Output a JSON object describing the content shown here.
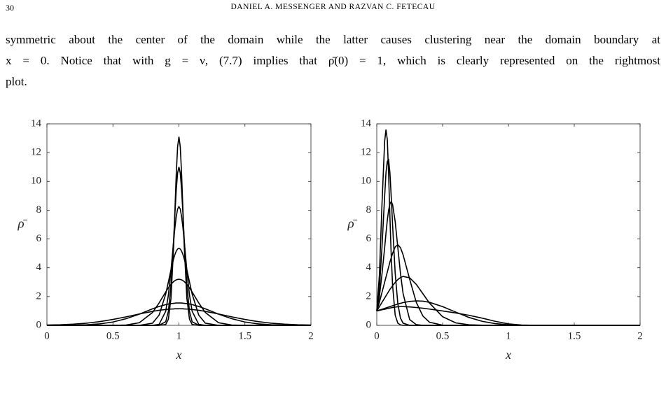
{
  "header": {
    "page_number": "30",
    "running_title": "DANIEL A. MESSENGER AND RAZVAN C. FETECAU"
  },
  "paragraph": {
    "lines": [
      "symmetric about the center of the domain while the latter causes clustering near the domain boundary at",
      "x = 0. Notice that with g = ν, (7.7) implies that ρ̄(0) = 1, which is clearly represented on the rightmost",
      "plot."
    ]
  },
  "chart_data": [
    {
      "type": "line",
      "xlabel": "x",
      "ylabel": "ρ̄",
      "x": [
        0,
        0.1,
        0.2,
        0.3,
        0.4,
        0.5,
        0.6,
        0.7,
        0.8,
        0.85,
        0.9,
        0.92,
        0.94,
        0.96,
        0.97,
        0.98,
        0.99,
        1,
        1.01,
        1.02,
        1.03,
        1.04,
        1.06,
        1.08,
        1.1,
        1.15,
        1.2,
        1.3,
        1.4,
        1.5,
        1.6,
        1.7,
        1.8,
        1.9,
        2
      ],
      "series": [
        {
          "color": "#000000",
          "values": [
            0,
            0,
            0,
            0,
            0,
            0,
            0,
            0,
            0,
            0,
            0.06,
            0.42,
            1.89,
            5.54,
            8.07,
            10.57,
            12.41,
            13.1,
            12.41,
            10.57,
            8.07,
            5.54,
            1.89,
            0.42,
            0.06,
            0,
            0,
            0,
            0,
            0,
            0,
            0,
            0,
            0,
            0
          ]
        },
        {
          "color": "#000000",
          "values": [
            0,
            0,
            0,
            0,
            0,
            0,
            0,
            0,
            0,
            0,
            0.25,
            0.97,
            2.81,
            5.99,
            7.82,
            9.45,
            10.59,
            11,
            10.59,
            9.45,
            7.82,
            5.99,
            2.81,
            0.97,
            0.25,
            0,
            0,
            0,
            0,
            0,
            0,
            0,
            0,
            0,
            0
          ]
        },
        {
          "color": "#000000",
          "values": [
            0,
            0,
            0,
            0,
            0,
            0,
            0,
            0,
            0,
            0.07,
            0.98,
            2.1,
            3.83,
            5.86,
            6.81,
            7.58,
            8.08,
            8.25,
            8.08,
            7.58,
            6.81,
            5.86,
            3.83,
            2.1,
            0.98,
            0.07,
            0,
            0,
            0,
            0,
            0,
            0,
            0,
            0,
            0
          ]
        },
        {
          "color": "#000000",
          "values": [
            0,
            0,
            0,
            0,
            0,
            0,
            0,
            0,
            0.15,
            0.71,
            2.18,
            3.01,
            3.87,
            4.63,
            4.93,
            5.16,
            5.3,
            5.35,
            5.3,
            5.16,
            4.93,
            4.63,
            3.87,
            3.01,
            2.18,
            0.71,
            0.15,
            0,
            0,
            0,
            0,
            0,
            0,
            0,
            0
          ]
        },
        {
          "color": "#000000",
          "values": [
            0,
            0,
            0,
            0,
            0,
            0,
            0.02,
            0.18,
            0.89,
            1.56,
            2.32,
            2.61,
            2.85,
            3.04,
            3.11,
            3.16,
            3.19,
            3.2,
            3.19,
            3.16,
            3.11,
            3.04,
            2.85,
            2.61,
            2.32,
            1.56,
            0.89,
            0.18,
            0.02,
            0,
            0,
            0,
            0,
            0,
            0
          ]
        },
        {
          "color": "#000000",
          "values": [
            0,
            0,
            0.01,
            0.04,
            0.1,
            0.23,
            0.46,
            0.78,
            1.15,
            1.31,
            1.44,
            1.48,
            1.51,
            1.53,
            1.54,
            1.55,
            1.55,
            1.55,
            1.55,
            1.55,
            1.54,
            1.53,
            1.51,
            1.48,
            1.44,
            1.31,
            1.15,
            0.78,
            0.46,
            0.23,
            0.1,
            0.04,
            0.01,
            0,
            0
          ]
        },
        {
          "color": "#000000",
          "values": [
            0.02,
            0.04,
            0.08,
            0.15,
            0.26,
            0.41,
            0.59,
            0.79,
            0.97,
            1.05,
            1.1,
            1.12,
            1.13,
            1.14,
            1.15,
            1.15,
            1.15,
            1.15,
            1.15,
            1.15,
            1.15,
            1.14,
            1.13,
            1.12,
            1.1,
            1.05,
            0.97,
            0.79,
            0.59,
            0.41,
            0.26,
            0.15,
            0.08,
            0.04,
            0.02
          ]
        }
      ],
      "xlim": [
        0,
        2
      ],
      "ylim": [
        0,
        14
      ],
      "xticks": [
        0,
        0.5,
        1,
        1.5,
        2
      ],
      "yticks": [
        0,
        2,
        4,
        6,
        8,
        10,
        12,
        14
      ]
    },
    {
      "type": "line",
      "xlabel": "x",
      "ylabel": "ρ̄",
      "x": [
        0,
        0.02,
        0.04,
        0.06,
        0.07,
        0.08,
        0.09,
        0.1,
        0.11,
        0.12,
        0.14,
        0.16,
        0.18,
        0.2,
        0.25,
        0.3,
        0.35,
        0.4,
        0.5,
        0.6,
        0.7,
        0.8,
        0.9,
        1,
        1.1,
        1.2,
        1.5,
        2
      ],
      "series": [
        {
          "color": "#000000",
          "values": [
            1,
            3.5,
            8.5,
            12.8,
            13.6,
            12.9,
            10.5,
            7.5,
            4.8,
            2.8,
            0.7,
            0.15,
            0.03,
            0,
            0,
            0,
            0,
            0,
            0,
            0,
            0,
            0,
            0,
            0,
            0,
            0,
            0,
            0
          ]
        },
        {
          "color": "#000000",
          "values": [
            1,
            2.5,
            5.5,
            9,
            10.6,
            11.4,
            11.5,
            10.6,
            8.9,
            7,
            3.6,
            1.5,
            0.5,
            0.15,
            0,
            0,
            0,
            0,
            0,
            0,
            0,
            0,
            0,
            0,
            0,
            0,
            0,
            0
          ]
        },
        {
          "color": "#000000",
          "values": [
            1,
            2,
            3.6,
            5.4,
            6.4,
            7.3,
            8,
            8.45,
            8.6,
            8.4,
            7.2,
            5.4,
            3.6,
            2.2,
            0.4,
            0.05,
            0,
            0,
            0,
            0,
            0,
            0,
            0,
            0,
            0,
            0,
            0,
            0
          ]
        },
        {
          "color": "#000000",
          "values": [
            1,
            1.6,
            2.3,
            3,
            3.35,
            3.7,
            4.05,
            4.4,
            4.7,
            5,
            5.45,
            5.6,
            5.4,
            4.9,
            3.2,
            1.6,
            0.65,
            0.22,
            0.01,
            0,
            0,
            0,
            0,
            0,
            0,
            0,
            0,
            0
          ]
        },
        {
          "color": "#000000",
          "values": [
            1,
            1.3,
            1.6,
            1.9,
            2.05,
            2.2,
            2.35,
            2.5,
            2.62,
            2.75,
            2.98,
            3.18,
            3.32,
            3.4,
            3.3,
            2.85,
            2.2,
            1.55,
            0.6,
            0.17,
            0.04,
            0.01,
            0,
            0,
            0,
            0,
            0,
            0
          ]
        },
        {
          "color": "#000000",
          "values": [
            1,
            1.06,
            1.12,
            1.18,
            1.21,
            1.24,
            1.27,
            1.3,
            1.33,
            1.36,
            1.42,
            1.48,
            1.53,
            1.58,
            1.66,
            1.7,
            1.68,
            1.6,
            1.3,
            0.92,
            0.55,
            0.28,
            0.12,
            0.04,
            0.01,
            0,
            0,
            0
          ]
        },
        {
          "color": "#000000",
          "values": [
            1,
            1.04,
            1.08,
            1.12,
            1.14,
            1.16,
            1.18,
            1.2,
            1.22,
            1.24,
            1.27,
            1.29,
            1.3,
            1.3,
            1.28,
            1.24,
            1.19,
            1.13,
            1,
            0.86,
            0.7,
            0.5,
            0.28,
            0.1,
            0.02,
            0,
            0,
            0
          ]
        }
      ],
      "xlim": [
        0,
        2
      ],
      "ylim": [
        0,
        14
      ],
      "xticks": [
        0,
        0.5,
        1,
        1.5,
        2
      ],
      "yticks": [
        0,
        2,
        4,
        6,
        8,
        10,
        12,
        14
      ]
    }
  ]
}
